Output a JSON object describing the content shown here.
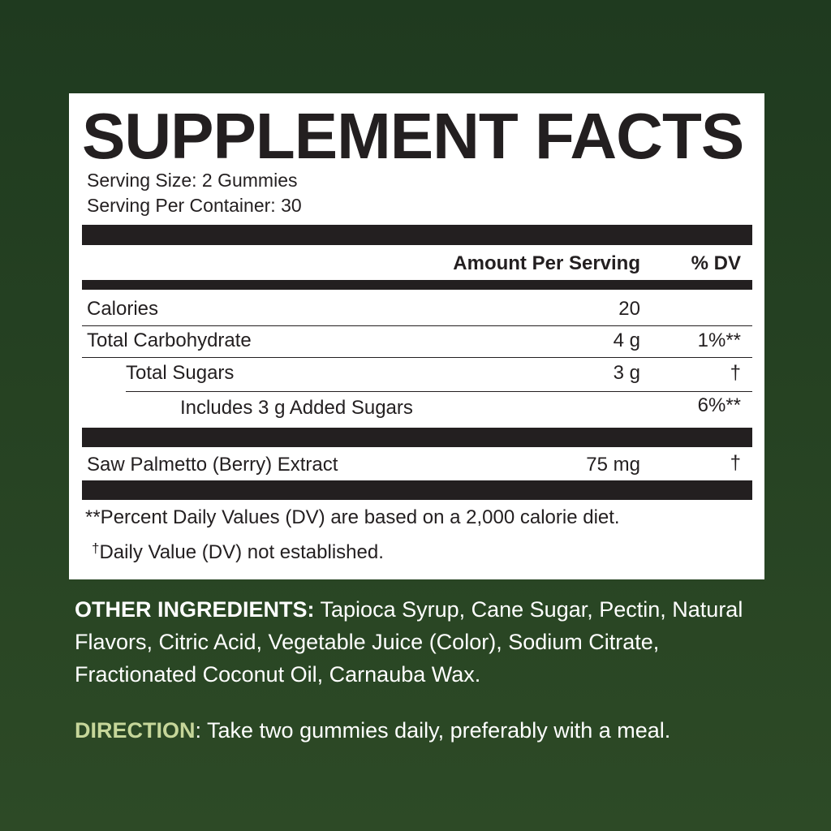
{
  "title": "SUPPLEMENT FACTS",
  "serving_size": "Serving Size: 2 Gummies",
  "servings_per_container": "Serving Per Container: 30",
  "header": {
    "amount": "Amount Per Serving",
    "dv": "% DV"
  },
  "rows": [
    {
      "name": "Calories",
      "amount": "20",
      "dv": ""
    },
    {
      "name": "Total Carbohydrate",
      "amount": "4 g",
      "dv": "1%**"
    },
    {
      "name": "Total Sugars",
      "amount": "3 g",
      "dv": "†"
    },
    {
      "name": "Includes 3 g Added Sugars",
      "amount": "",
      "dv": "6%**"
    },
    {
      "name": "Saw Palmetto (Berry) Extract",
      "amount": "75 mg",
      "dv": "†"
    }
  ],
  "footnotes": {
    "dv_basis": "**Percent Daily Values (DV) are based on a 2,000 calorie diet.",
    "dagger": "†",
    "not_established": "Daily Value (DV) not established."
  },
  "other_ingredients": {
    "label": "OTHER INGREDIENTS:",
    "text": " Tapioca Syrup, Cane Sugar, Pectin, Natural Flavors, Citric Acid, Vegetable Juice (Color), Sodium Citrate, Fractionated Coconut Oil, Carnauba Wax."
  },
  "direction": {
    "label": "DIRECTION",
    "text": ": Take two gummies daily, preferably with a meal."
  },
  "colors": {
    "background": "#24401f",
    "panel": "#ffffff",
    "ink": "#231f20",
    "direction_label": "#c6d69a"
  }
}
